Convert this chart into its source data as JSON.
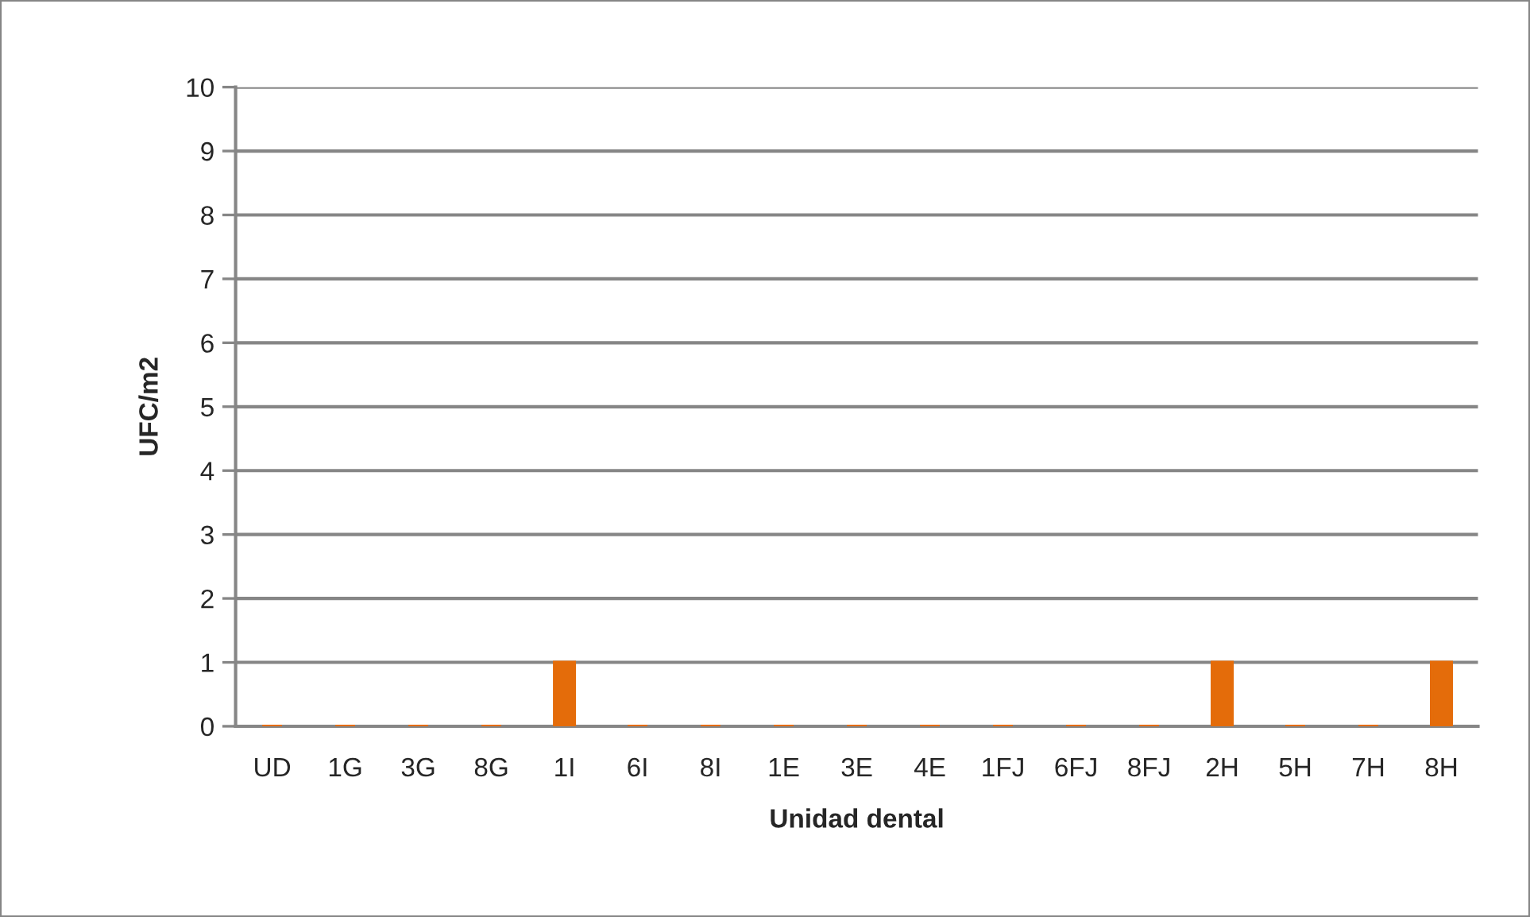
{
  "chart_data": {
    "type": "bar",
    "xlabel": "Unidad dental",
    "ylabel": "UFC/m2",
    "categories": [
      "UD",
      "1G",
      "3G",
      "8G",
      "1I",
      "6I",
      "8I",
      "1E",
      "3E",
      "4E",
      "1FJ",
      "6FJ",
      "8FJ",
      "2H",
      "5H",
      "7H",
      "8H"
    ],
    "values": [
      0,
      0,
      0,
      0,
      1,
      0,
      0,
      0,
      0,
      0,
      0,
      0,
      0,
      1,
      0,
      0,
      1
    ],
    "color": "#e46c0a",
    "ylim": [
      0,
      10
    ],
    "yticks": [
      0,
      1,
      2,
      3,
      4,
      5,
      6,
      7,
      8,
      9,
      10
    ],
    "grid": "y"
  }
}
